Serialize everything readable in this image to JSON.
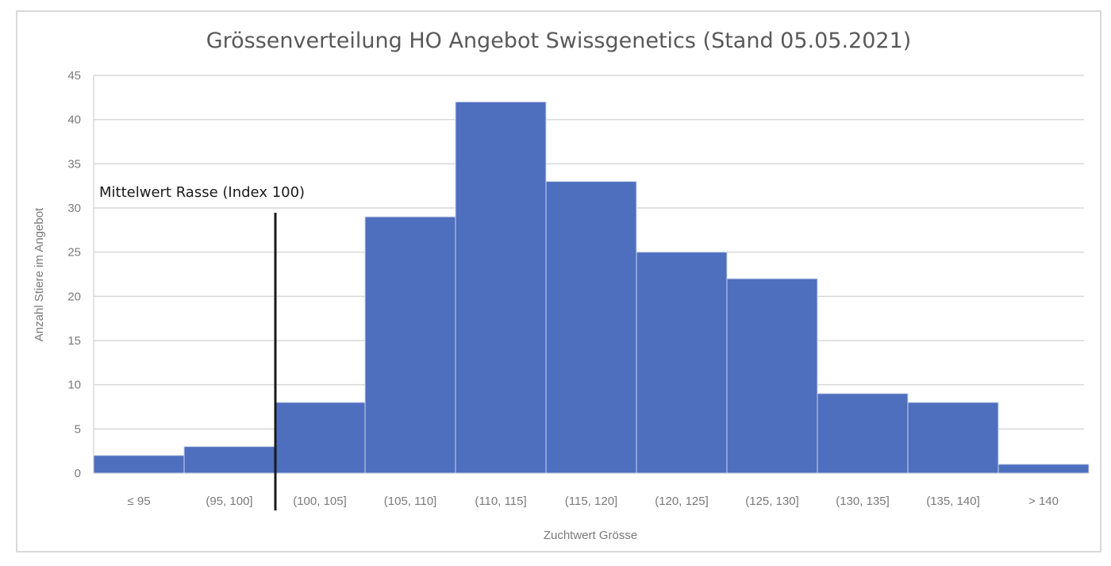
{
  "chart_data": {
    "type": "bar",
    "title": "Grössenverteilung HO Angebot Swissgenetics (Stand 05.05.2021)",
    "xlabel": "Zuchtwert Grösse",
    "ylabel": "Anzahl Stiere im Angebot",
    "categories": [
      "≤ 95",
      "(95, 100]",
      "(100, 105]",
      "(105, 110]",
      "(110, 115]",
      "(115, 120]",
      "(120, 125]",
      "(125, 130]",
      "(130, 135]",
      "(135, 140]",
      "> 140"
    ],
    "values": [
      2,
      3,
      8,
      29,
      42,
      33,
      25,
      22,
      9,
      8,
      1
    ],
    "ylim": [
      0,
      45
    ],
    "yticks": [
      0,
      5,
      10,
      15,
      20,
      25,
      30,
      35,
      40,
      45
    ],
    "grid": true,
    "legend": "none",
    "bar_color": "#4E6FBE",
    "annotation": {
      "text": "Mittelwert Rasse (Index 100)",
      "x_value": 100,
      "line_color": "#1a1a1a"
    }
  }
}
